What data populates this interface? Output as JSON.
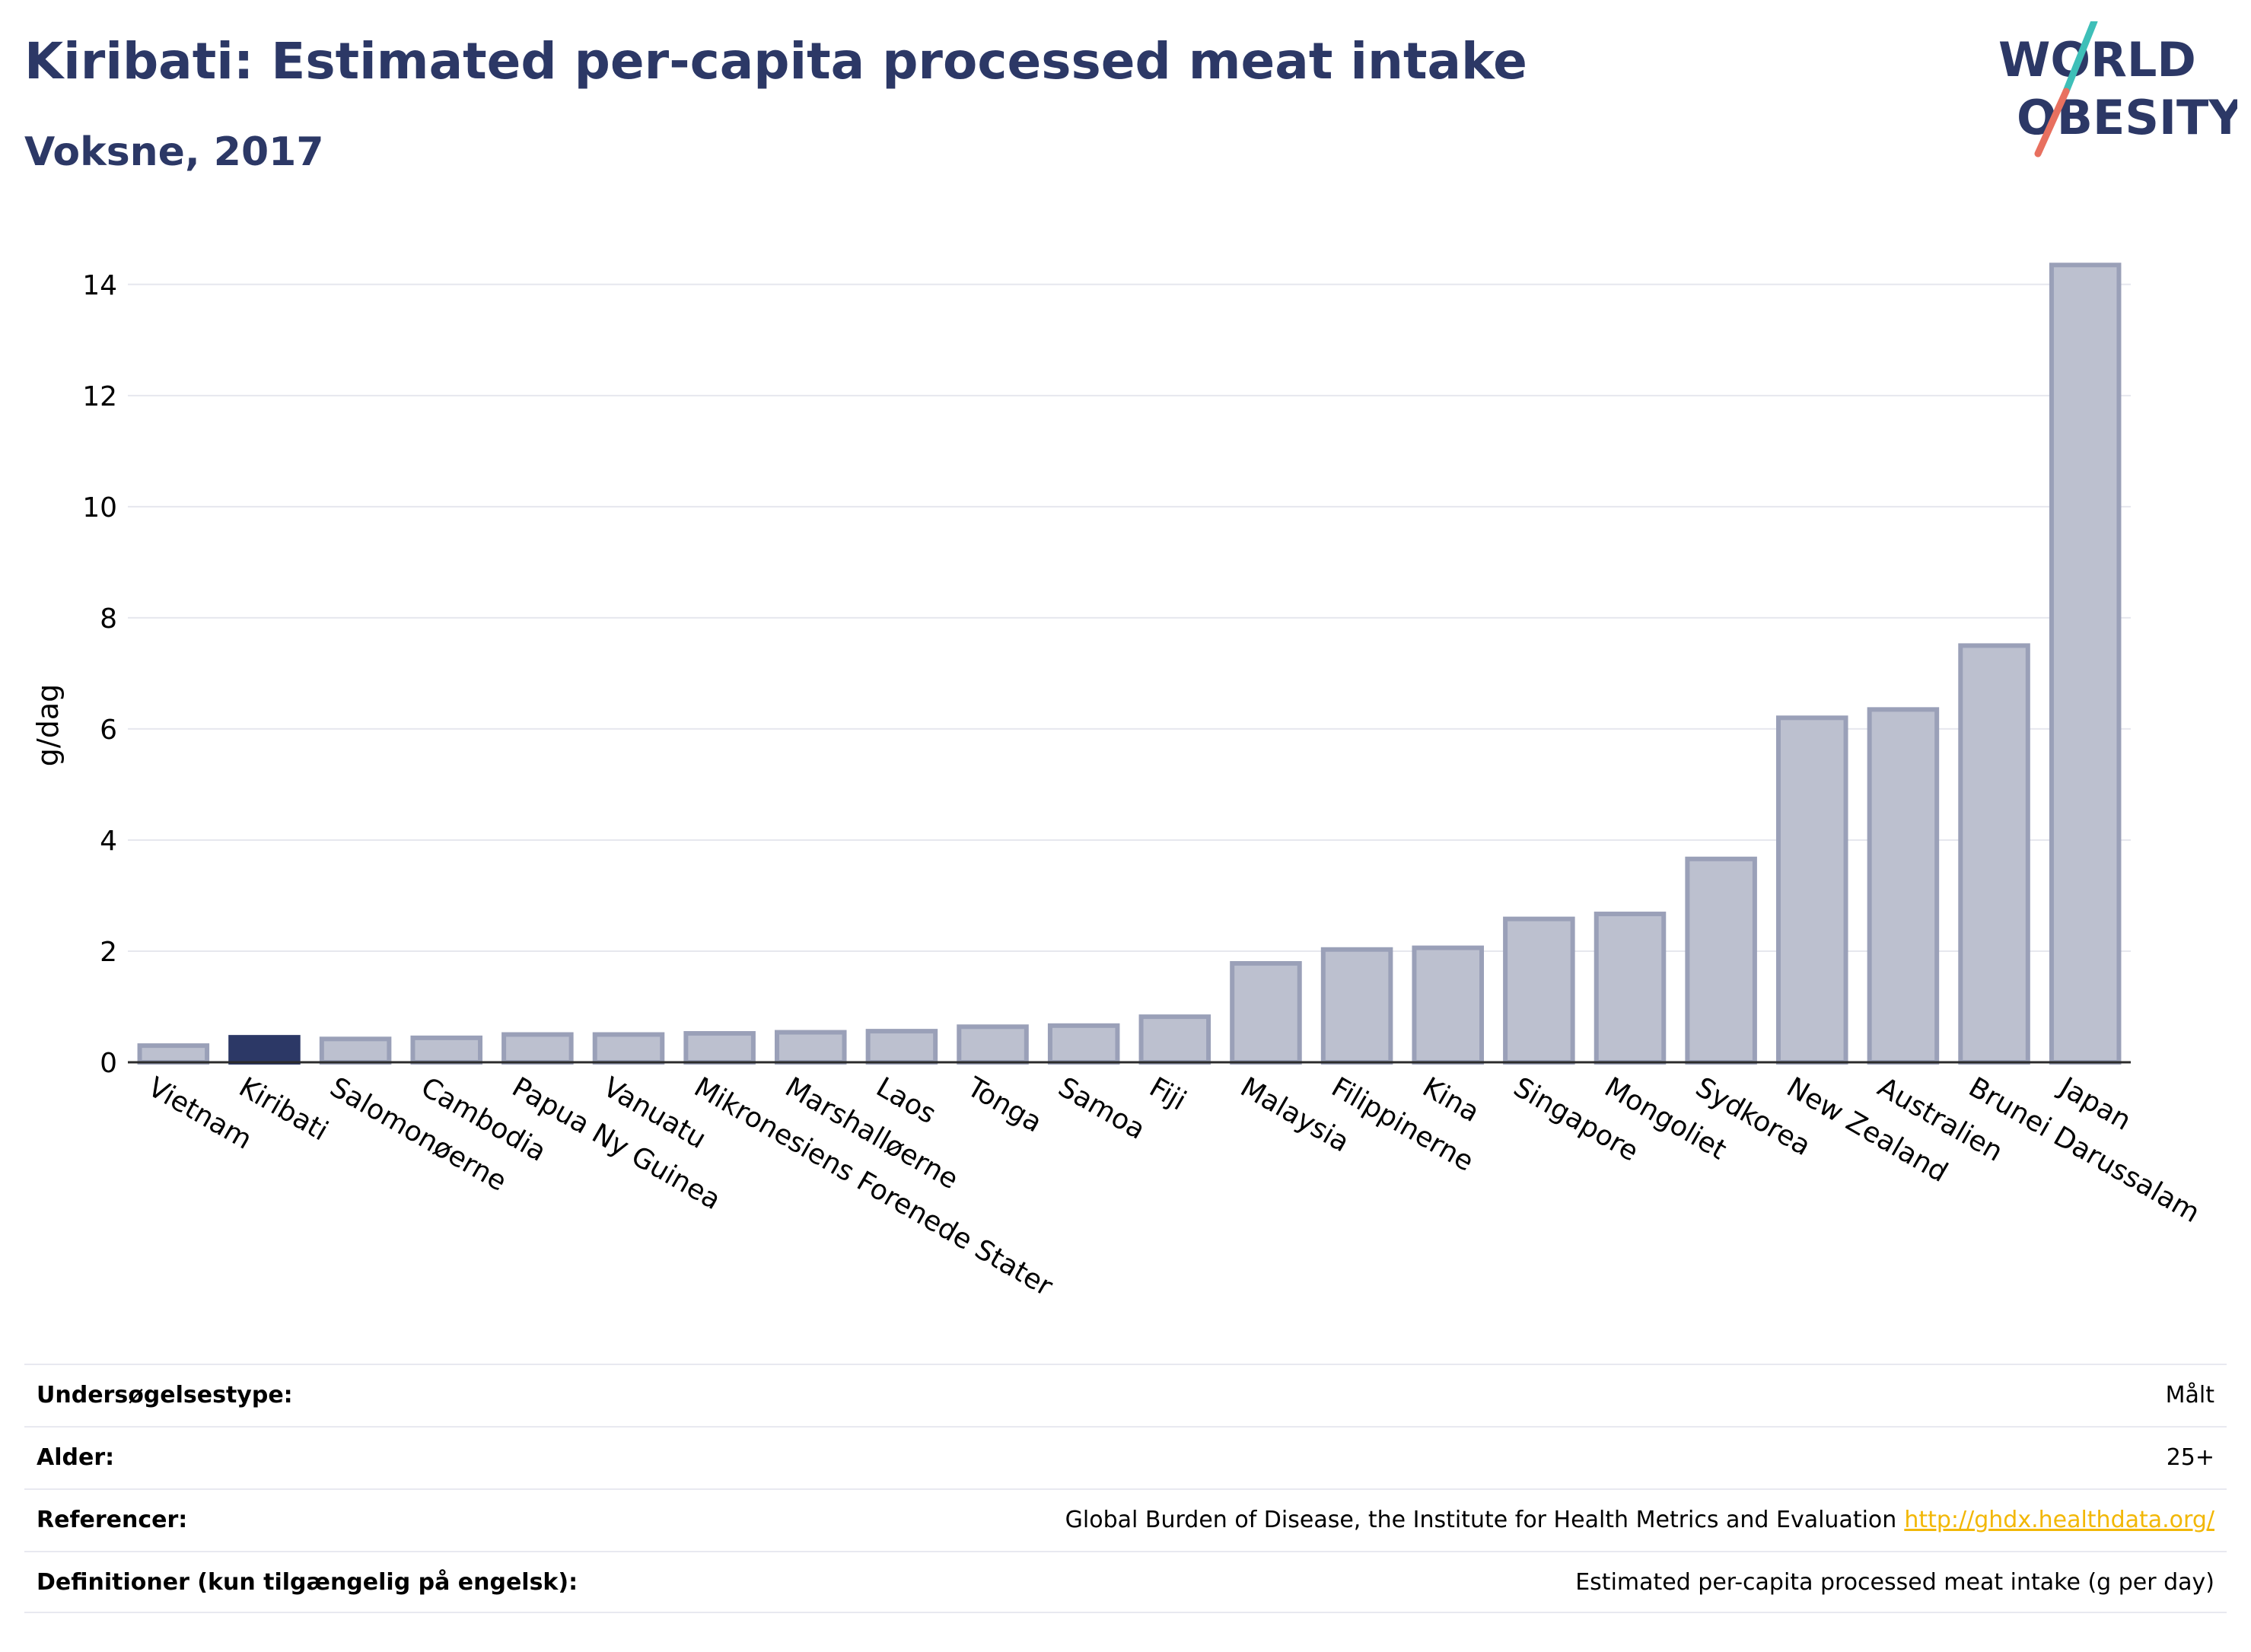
{
  "header": {
    "title": "Kiribati: Estimated per-capita processed meat intake",
    "subtitle": "Voksne, 2017"
  },
  "logo": {
    "line1": "WORLD",
    "line2": "OBESITY",
    "colors": {
      "text": "#2c3866",
      "slash_top": "#3ebfb8",
      "slash_bottom": "#e8705f"
    }
  },
  "chart_data": {
    "type": "bar",
    "ylabel": "g/dag",
    "xlabel": "",
    "ylim": [
      0,
      14.6
    ],
    "yticks": [
      0,
      2,
      4,
      6,
      8,
      10,
      12,
      14
    ],
    "grid": true,
    "highlight": "Kiribati",
    "colors": {
      "bar": "#bcc0cf",
      "bar_stroke": "#9aa0b8",
      "highlight": "#2c3866"
    },
    "categories": [
      "Vietnam",
      "Kiribati",
      "Salomonøerne",
      "Cambodia",
      "Papua Ny Guinea",
      "Vanuatu",
      "Mikronesiens Forenede Stater",
      "Marshalløerne",
      "Laos",
      "Tonga",
      "Samoa",
      "Fiji",
      "Malaysia",
      "Filippinerne",
      "Kina",
      "Singapore",
      "Mongoliet",
      "Sydkorea",
      "New Zealand",
      "Australien",
      "Brunei Darussalam",
      "Japan"
    ],
    "values": [
      0.3,
      0.45,
      0.42,
      0.44,
      0.5,
      0.5,
      0.52,
      0.54,
      0.56,
      0.64,
      0.66,
      0.82,
      1.78,
      2.03,
      2.06,
      2.58,
      2.67,
      3.66,
      6.2,
      6.35,
      7.5,
      14.35
    ]
  },
  "meta": {
    "rows": [
      {
        "label": "Undersøgelsestype:",
        "value": "Målt"
      },
      {
        "label": "Alder:",
        "value": "25+"
      },
      {
        "label": "Referencer:",
        "value": "Global Burden of Disease, the Institute for Health Metrics and Evaluation",
        "link": "http://ghdx.healthdata.org/"
      },
      {
        "label": "Definitioner (kun tilgængelig på engelsk):",
        "value": "Estimated per-capita processed meat intake (g per day)"
      }
    ]
  }
}
